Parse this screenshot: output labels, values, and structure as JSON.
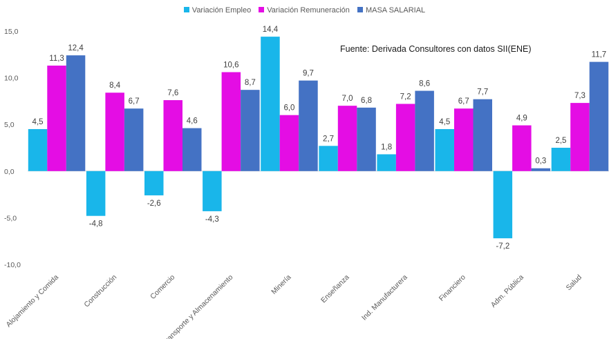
{
  "chart_data": {
    "type": "bar",
    "categories": [
      "Alojamiento y Comida",
      "Construcción",
      "Comercio",
      "Transporte y Almacenamiento",
      "Minería",
      "Enseñanza",
      "Ind. Manufacturera",
      "Financiero",
      "Adm. Pública",
      "Salud"
    ],
    "series": [
      {
        "name": "Variación Empleo",
        "color": "#19b6ea",
        "values": [
          4.5,
          -4.8,
          -2.6,
          -4.3,
          14.4,
          2.7,
          1.8,
          4.5,
          -7.2,
          2.5
        ]
      },
      {
        "name": "Variación Remuneración",
        "color": "#e40de4",
        "values": [
          11.3,
          8.4,
          7.6,
          10.6,
          6.0,
          7.0,
          7.2,
          6.7,
          4.9,
          7.3
        ]
      },
      {
        "name": "MASA SALARIAL",
        "color": "#4472c4",
        "values": [
          12.4,
          6.7,
          4.6,
          8.7,
          9.7,
          6.8,
          8.6,
          7.7,
          0.3,
          11.7
        ]
      }
    ],
    "ylim": [
      -10,
      15
    ],
    "yticks": [
      "-10,0",
      "-5,0",
      "0,0",
      "5,0",
      "10,0",
      "15,0"
    ],
    "data_labels": [
      [
        "4,5",
        "-4,8",
        "-2,6",
        "-4,3",
        "14,4",
        "2,7",
        "1,8",
        "4,5",
        "-7,2",
        "2,5"
      ],
      [
        "11,3",
        "8,4",
        "7,6",
        "10,6",
        "6,0",
        "7,0",
        "7,2",
        "6,7",
        "4,9",
        "7,3"
      ],
      [
        "12,4",
        "6,7",
        "4,6",
        "8,7",
        "9,7",
        "6,8",
        "8,6",
        "7,7",
        "0,3",
        "11,7"
      ]
    ],
    "annotation": "Fuente: Derivada Consultores con datos SII(ENE)",
    "grid": false,
    "legend_position": "top"
  }
}
